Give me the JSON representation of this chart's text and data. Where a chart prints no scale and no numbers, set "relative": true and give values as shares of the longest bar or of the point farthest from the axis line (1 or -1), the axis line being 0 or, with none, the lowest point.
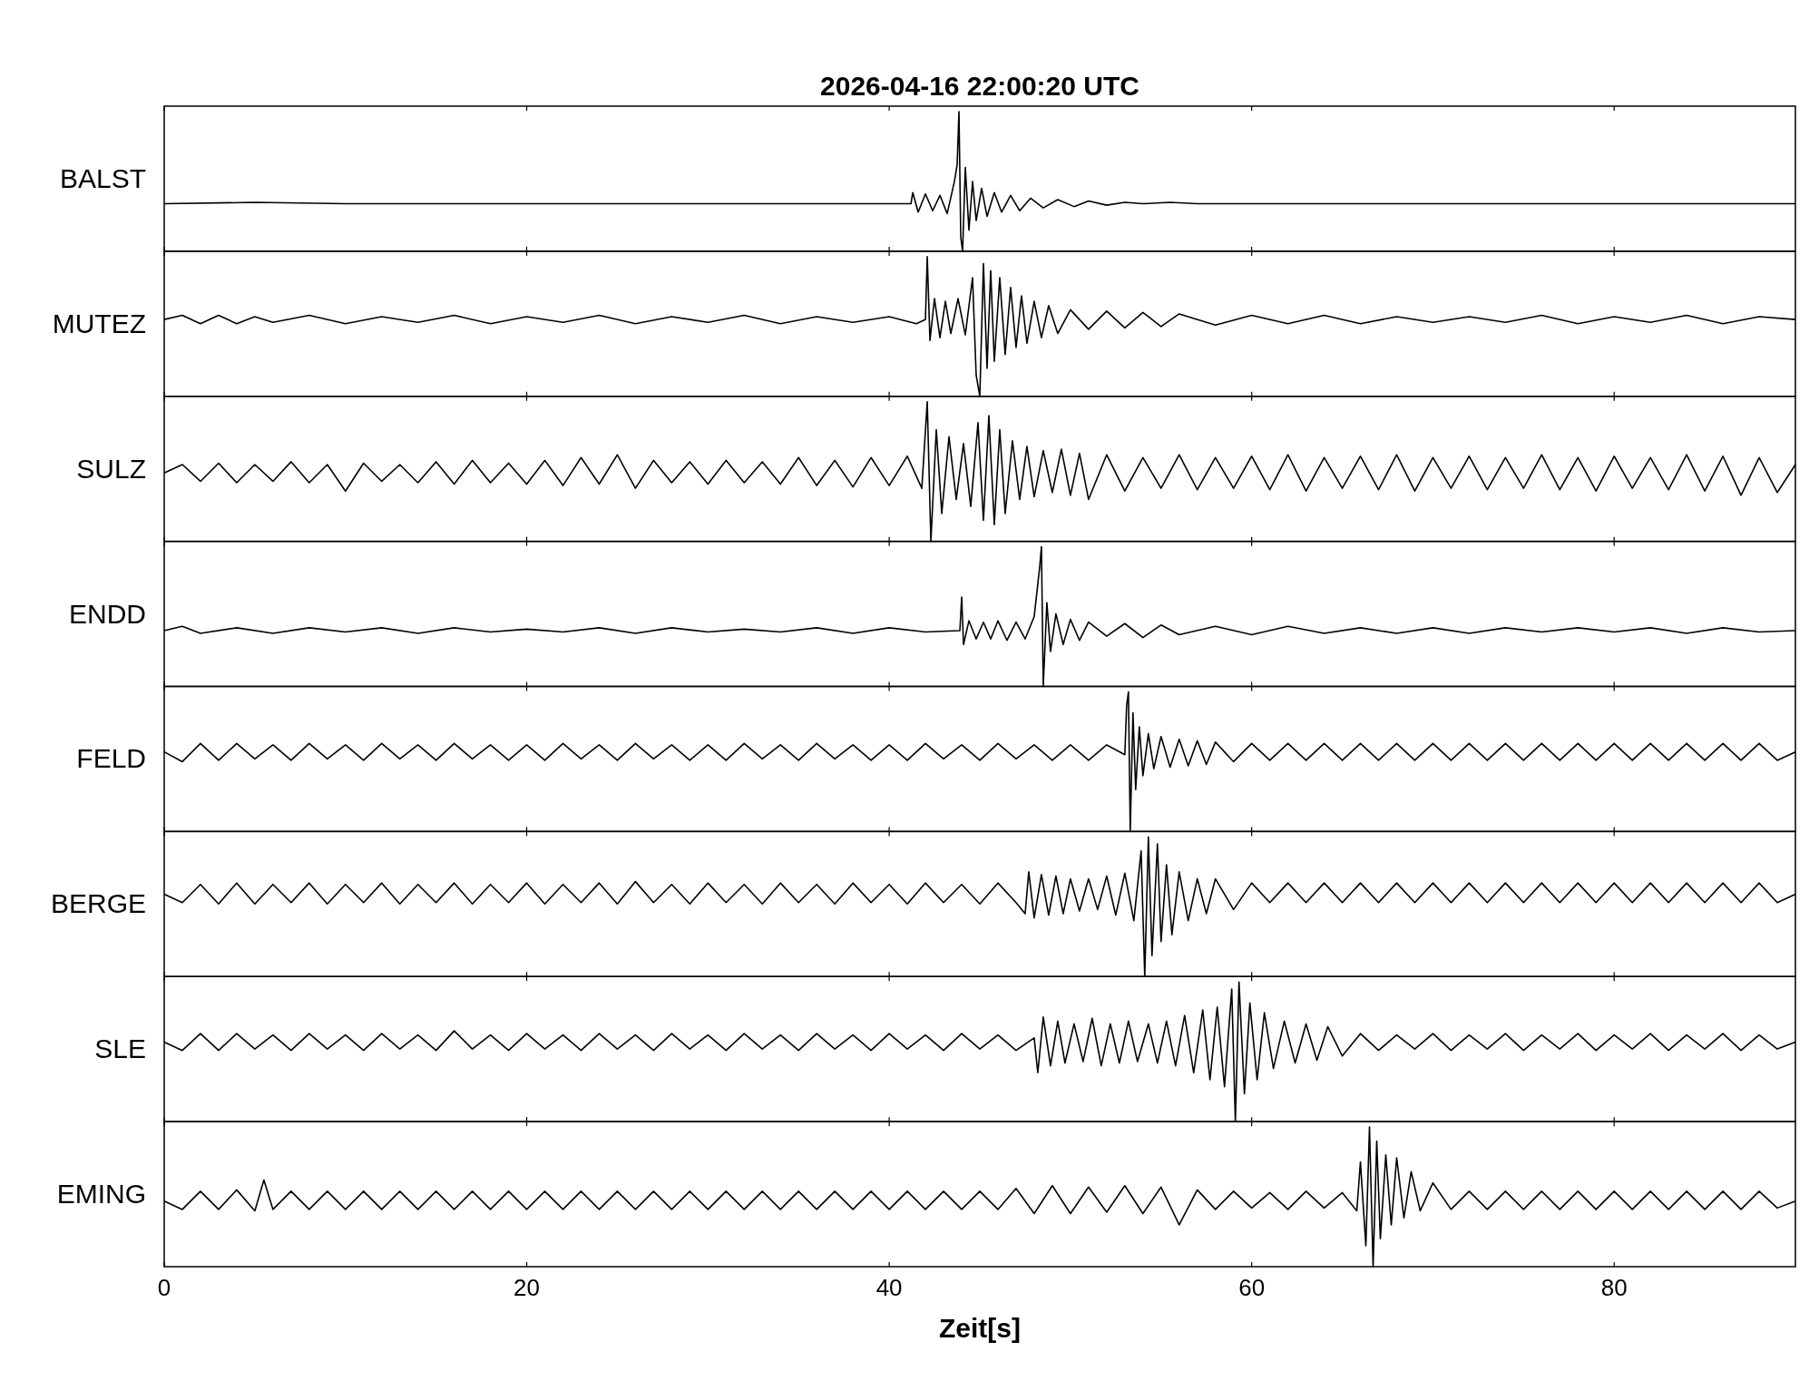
{
  "chart_data": [
    {
      "type": "line",
      "title": "2026-04-16  22:00:20 UTC",
      "ylabel": "BALST",
      "relative": true,
      "xlim": [
        0,
        90
      ],
      "xticks": [
        0,
        20,
        40,
        60,
        80
      ],
      "tick_labels": false,
      "color": "#000000",
      "x": [
        0,
        5,
        10,
        20,
        30,
        41.2,
        41.3,
        41.6,
        42,
        42.4,
        42.8,
        43.2,
        43.6,
        43.75,
        43.85,
        43.95,
        44.05,
        44.2,
        44.4,
        44.6,
        44.8,
        45.1,
        45.4,
        45.8,
        46.2,
        46.7,
        47.2,
        47.8,
        48.5,
        49.3,
        50.2,
        51,
        52,
        53,
        54,
        55.5,
        57,
        60,
        70,
        80,
        90
      ],
      "values": [
        0.34,
        0.35,
        0.34,
        0.34,
        0.34,
        0.34,
        0.42,
        0.28,
        0.41,
        0.29,
        0.4,
        0.27,
        0.5,
        0.62,
        1.0,
        0.1,
        0.0,
        0.6,
        0.15,
        0.5,
        0.22,
        0.45,
        0.25,
        0.42,
        0.28,
        0.4,
        0.29,
        0.38,
        0.31,
        0.37,
        0.32,
        0.36,
        0.33,
        0.35,
        0.34,
        0.35,
        0.34,
        0.34,
        0.34,
        0.34,
        0.34
      ]
    },
    {
      "type": "line",
      "ylabel": "MUTEZ",
      "relative": true,
      "xlim": [
        0,
        90
      ],
      "xticks": [
        0,
        20,
        40,
        60,
        80
      ],
      "tick_labels": false,
      "color": "#000000",
      "x": [
        0,
        1,
        2,
        3,
        4,
        5,
        6,
        8,
        10,
        12,
        14,
        16,
        18,
        20,
        22,
        24,
        26,
        28,
        30,
        32,
        34,
        36,
        38,
        40,
        41.5,
        42,
        42.1,
        42.25,
        42.5,
        42.8,
        43.1,
        43.4,
        43.8,
        44.2,
        44.6,
        44.8,
        45,
        45.2,
        45.4,
        45.6,
        45.8,
        46.1,
        46.4,
        46.7,
        47,
        47.3,
        47.6,
        48,
        48.4,
        48.8,
        49.3,
        50,
        51,
        52,
        53,
        54,
        55,
        56,
        58,
        60,
        62,
        64,
        66,
        68,
        70,
        72,
        74,
        76,
        78,
        80,
        82,
        84,
        86,
        88,
        90
      ],
      "values": [
        0.55,
        0.58,
        0.52,
        0.58,
        0.52,
        0.57,
        0.53,
        0.58,
        0.52,
        0.57,
        0.53,
        0.58,
        0.52,
        0.57,
        0.53,
        0.58,
        0.52,
        0.57,
        0.53,
        0.58,
        0.52,
        0.57,
        0.53,
        0.57,
        0.52,
        0.55,
        1.0,
        0.4,
        0.7,
        0.42,
        0.68,
        0.45,
        0.7,
        0.44,
        0.85,
        0.15,
        0.0,
        0.95,
        0.2,
        0.9,
        0.25,
        0.85,
        0.3,
        0.78,
        0.35,
        0.72,
        0.38,
        0.68,
        0.42,
        0.65,
        0.45,
        0.62,
        0.48,
        0.61,
        0.49,
        0.6,
        0.5,
        0.59,
        0.51,
        0.58,
        0.52,
        0.58,
        0.52,
        0.57,
        0.53,
        0.57,
        0.53,
        0.58,
        0.52,
        0.57,
        0.53,
        0.58,
        0.52,
        0.57,
        0.55
      ]
    },
    {
      "type": "line",
      "ylabel": "SULZ",
      "relative": true,
      "xlim": [
        0,
        90
      ],
      "xticks": [
        0,
        20,
        40,
        60,
        80
      ],
      "tick_labels": false,
      "color": "#000000",
      "x": [
        0,
        1,
        2,
        3,
        4,
        5,
        6,
        7,
        8,
        9,
        10,
        11,
        12,
        13,
        14,
        15,
        16,
        17,
        18,
        19,
        20,
        21,
        22,
        23,
        24,
        25,
        26,
        27,
        28,
        29,
        30,
        31,
        32,
        33,
        34,
        35,
        36,
        37,
        38,
        39,
        40,
        41,
        41.8,
        42.1,
        42.3,
        42.6,
        42.9,
        43.3,
        43.7,
        44.1,
        44.5,
        44.9,
        45.2,
        45.5,
        45.8,
        46.1,
        46.4,
        46.8,
        47.2,
        47.6,
        48,
        48.5,
        49,
        49.5,
        50,
        50.5,
        51,
        52,
        53,
        54,
        55,
        56,
        57,
        58,
        59,
        60,
        61,
        62,
        63,
        64,
        65,
        66,
        67,
        68,
        69,
        70,
        71,
        72,
        73,
        74,
        75,
        76,
        77,
        78,
        79,
        80,
        81,
        82,
        83,
        84,
        85,
        86,
        87,
        88,
        89,
        90
      ],
      "values": [
        0.49,
        0.55,
        0.43,
        0.56,
        0.42,
        0.55,
        0.43,
        0.57,
        0.42,
        0.55,
        0.36,
        0.56,
        0.43,
        0.55,
        0.42,
        0.57,
        0.41,
        0.58,
        0.42,
        0.56,
        0.41,
        0.58,
        0.4,
        0.6,
        0.41,
        0.62,
        0.38,
        0.58,
        0.42,
        0.57,
        0.41,
        0.58,
        0.42,
        0.57,
        0.41,
        0.6,
        0.4,
        0.58,
        0.39,
        0.6,
        0.4,
        0.61,
        0.38,
        1.0,
        0.0,
        0.8,
        0.2,
        0.75,
        0.3,
        0.7,
        0.25,
        0.85,
        0.15,
        0.9,
        0.12,
        0.8,
        0.2,
        0.72,
        0.3,
        0.68,
        0.32,
        0.65,
        0.35,
        0.66,
        0.33,
        0.63,
        0.3,
        0.62,
        0.36,
        0.6,
        0.38,
        0.62,
        0.37,
        0.6,
        0.38,
        0.61,
        0.37,
        0.62,
        0.36,
        0.6,
        0.38,
        0.61,
        0.37,
        0.62,
        0.36,
        0.6,
        0.38,
        0.61,
        0.37,
        0.6,
        0.38,
        0.62,
        0.37,
        0.6,
        0.36,
        0.61,
        0.38,
        0.6,
        0.37,
        0.62,
        0.36,
        0.61,
        0.33,
        0.6,
        0.35,
        0.55
      ]
    },
    {
      "type": "line",
      "ylabel": "ENDD",
      "relative": true,
      "xlim": [
        0,
        90
      ],
      "xticks": [
        0,
        20,
        40,
        60,
        80
      ],
      "tick_labels": false,
      "color": "#000000",
      "x": [
        0,
        1,
        2,
        4,
        6,
        8,
        10,
        12,
        14,
        16,
        18,
        20,
        22,
        24,
        26,
        28,
        30,
        32,
        34,
        36,
        38,
        40,
        42,
        43.9,
        44,
        44.1,
        44.4,
        44.8,
        45.2,
        45.6,
        46,
        46.5,
        47,
        47.5,
        48,
        48.3,
        48.4,
        48.5,
        48.7,
        48.9,
        49.2,
        49.6,
        50,
        50.5,
        51,
        52,
        53,
        54,
        55,
        56,
        58,
        60,
        62,
        64,
        66,
        68,
        70,
        72,
        74,
        76,
        78,
        80,
        82,
        84,
        86,
        88,
        90
      ],
      "values": [
        0.4,
        0.43,
        0.38,
        0.42,
        0.38,
        0.42,
        0.39,
        0.42,
        0.38,
        0.42,
        0.39,
        0.41,
        0.39,
        0.42,
        0.38,
        0.42,
        0.39,
        0.41,
        0.39,
        0.42,
        0.38,
        0.42,
        0.39,
        0.4,
        0.64,
        0.3,
        0.47,
        0.34,
        0.46,
        0.34,
        0.47,
        0.33,
        0.46,
        0.34,
        0.5,
        0.85,
        1.0,
        0.0,
        0.6,
        0.25,
        0.52,
        0.3,
        0.48,
        0.33,
        0.46,
        0.36,
        0.45,
        0.35,
        0.44,
        0.37,
        0.43,
        0.37,
        0.43,
        0.38,
        0.42,
        0.38,
        0.42,
        0.38,
        0.42,
        0.39,
        0.42,
        0.39,
        0.42,
        0.38,
        0.42,
        0.39,
        0.4
      ]
    },
    {
      "type": "line",
      "ylabel": "FELD",
      "relative": true,
      "xlim": [
        0,
        90
      ],
      "xticks": [
        0,
        20,
        40,
        60,
        80
      ],
      "tick_labels": false,
      "color": "#000000",
      "x": [
        0,
        1,
        2,
        3,
        4,
        5,
        6,
        7,
        8,
        9,
        10,
        11,
        12,
        13,
        14,
        15,
        16,
        17,
        18,
        19,
        20,
        21,
        22,
        23,
        24,
        25,
        26,
        27,
        28,
        29,
        30,
        31,
        32,
        33,
        34,
        35,
        36,
        37,
        38,
        39,
        40,
        41,
        42,
        43,
        44,
        45,
        46,
        47,
        48,
        49,
        50,
        51,
        52,
        53,
        53.1,
        53.2,
        53.3,
        53.45,
        53.6,
        53.8,
        54,
        54.3,
        54.6,
        55,
        55.5,
        56,
        56.5,
        57,
        57.5,
        58,
        59,
        60,
        61,
        62,
        63,
        64,
        65,
        66,
        67,
        68,
        69,
        70,
        71,
        72,
        73,
        74,
        75,
        76,
        77,
        78,
        79,
        80,
        81,
        82,
        83,
        84,
        85,
        86,
        87,
        88,
        89,
        90
      ],
      "values": [
        0.57,
        0.5,
        0.63,
        0.51,
        0.63,
        0.52,
        0.62,
        0.51,
        0.63,
        0.52,
        0.62,
        0.51,
        0.63,
        0.52,
        0.62,
        0.51,
        0.63,
        0.52,
        0.62,
        0.51,
        0.62,
        0.51,
        0.63,
        0.52,
        0.62,
        0.51,
        0.63,
        0.52,
        0.62,
        0.51,
        0.62,
        0.51,
        0.63,
        0.52,
        0.62,
        0.51,
        0.63,
        0.52,
        0.62,
        0.51,
        0.62,
        0.51,
        0.63,
        0.52,
        0.62,
        0.51,
        0.63,
        0.52,
        0.62,
        0.51,
        0.62,
        0.51,
        0.62,
        0.55,
        0.9,
        1.0,
        0.0,
        0.85,
        0.3,
        0.75,
        0.4,
        0.7,
        0.45,
        0.68,
        0.46,
        0.66,
        0.47,
        0.65,
        0.48,
        0.64,
        0.5,
        0.63,
        0.51,
        0.63,
        0.51,
        0.63,
        0.51,
        0.63,
        0.51,
        0.63,
        0.51,
        0.63,
        0.51,
        0.63,
        0.51,
        0.63,
        0.51,
        0.63,
        0.51,
        0.63,
        0.51,
        0.63,
        0.51,
        0.63,
        0.51,
        0.63,
        0.51,
        0.63,
        0.51,
        0.63,
        0.51,
        0.57
      ]
    },
    {
      "type": "line",
      "ylabel": "BERGE",
      "relative": true,
      "xlim": [
        0,
        90
      ],
      "xticks": [
        0,
        20,
        40,
        60,
        80
      ],
      "tick_labels": false,
      "color": "#000000",
      "x": [
        0,
        1,
        2,
        3,
        4,
        5,
        6,
        7,
        8,
        9,
        10,
        11,
        12,
        13,
        14,
        15,
        16,
        17,
        18,
        19,
        20,
        21,
        22,
        23,
        24,
        25,
        26,
        27,
        28,
        29,
        30,
        31,
        32,
        33,
        34,
        35,
        36,
        37,
        38,
        39,
        40,
        41,
        42,
        43,
        44,
        45,
        46,
        47,
        47.5,
        47.7,
        48,
        48.4,
        48.8,
        49.2,
        49.6,
        50,
        50.5,
        51,
        51.5,
        52,
        52.5,
        53,
        53.5,
        53.9,
        54.1,
        54.3,
        54.5,
        54.8,
        55,
        55.3,
        55.6,
        56,
        56.5,
        57,
        57.5,
        58,
        59,
        60,
        61,
        62,
        63,
        64,
        65,
        66,
        67,
        68,
        69,
        70,
        71,
        72,
        73,
        74,
        75,
        76,
        77,
        78,
        79,
        80,
        81,
        82,
        83,
        84,
        85,
        86,
        87,
        88,
        89,
        90
      ],
      "values": [
        0.59,
        0.53,
        0.66,
        0.52,
        0.67,
        0.52,
        0.66,
        0.53,
        0.67,
        0.52,
        0.66,
        0.53,
        0.67,
        0.52,
        0.66,
        0.53,
        0.67,
        0.52,
        0.66,
        0.53,
        0.67,
        0.52,
        0.66,
        0.53,
        0.67,
        0.52,
        0.68,
        0.53,
        0.66,
        0.52,
        0.67,
        0.53,
        0.66,
        0.52,
        0.67,
        0.53,
        0.66,
        0.52,
        0.67,
        0.53,
        0.66,
        0.52,
        0.67,
        0.53,
        0.66,
        0.52,
        0.67,
        0.53,
        0.45,
        0.75,
        0.42,
        0.73,
        0.44,
        0.72,
        0.45,
        0.7,
        0.47,
        0.7,
        0.48,
        0.72,
        0.44,
        0.74,
        0.4,
        0.9,
        0.0,
        1.0,
        0.15,
        0.95,
        0.25,
        0.8,
        0.3,
        0.75,
        0.4,
        0.7,
        0.45,
        0.7,
        0.48,
        0.67,
        0.53,
        0.67,
        0.53,
        0.67,
        0.53,
        0.67,
        0.53,
        0.67,
        0.53,
        0.67,
        0.53,
        0.67,
        0.53,
        0.67,
        0.53,
        0.67,
        0.53,
        0.67,
        0.53,
        0.67,
        0.53,
        0.67,
        0.53,
        0.67,
        0.53,
        0.67,
        0.53,
        0.67,
        0.53,
        0.59
      ]
    },
    {
      "type": "line",
      "ylabel": "SLE",
      "relative": true,
      "xlim": [
        0,
        90
      ],
      "xticks": [
        0,
        20,
        40,
        60,
        80
      ],
      "tick_labels": false,
      "color": "#000000",
      "x": [
        0,
        1,
        2,
        3,
        4,
        5,
        6,
        7,
        8,
        9,
        10,
        11,
        12,
        13,
        14,
        15,
        16,
        17,
        18,
        19,
        20,
        21,
        22,
        23,
        24,
        25,
        26,
        27,
        28,
        29,
        30,
        31,
        32,
        33,
        34,
        35,
        36,
        37,
        38,
        39,
        40,
        41,
        42,
        43,
        44,
        45,
        46,
        47,
        48,
        48.2,
        48.5,
        48.9,
        49.3,
        49.7,
        50.2,
        50.7,
        51.2,
        51.7,
        52.2,
        52.7,
        53.2,
        53.7,
        54.3,
        54.8,
        55.3,
        55.8,
        56.3,
        56.8,
        57.3,
        57.7,
        58.1,
        58.5,
        58.9,
        59.1,
        59.3,
        59.6,
        59.9,
        60.3,
        60.7,
        61.2,
        61.8,
        62.4,
        63,
        63.6,
        64.2,
        65,
        66,
        67,
        68,
        69,
        70,
        71,
        72,
        73,
        74,
        75,
        76,
        77,
        78,
        79,
        80,
        81,
        82,
        83,
        84,
        85,
        86,
        87,
        88,
        89,
        90
      ],
      "values": [
        0.57,
        0.51,
        0.63,
        0.51,
        0.63,
        0.52,
        0.62,
        0.51,
        0.63,
        0.52,
        0.62,
        0.51,
        0.63,
        0.52,
        0.62,
        0.51,
        0.65,
        0.52,
        0.62,
        0.51,
        0.63,
        0.52,
        0.62,
        0.51,
        0.63,
        0.52,
        0.62,
        0.51,
        0.63,
        0.52,
        0.62,
        0.51,
        0.63,
        0.52,
        0.62,
        0.51,
        0.63,
        0.52,
        0.62,
        0.51,
        0.63,
        0.52,
        0.62,
        0.51,
        0.63,
        0.52,
        0.62,
        0.51,
        0.6,
        0.35,
        0.75,
        0.4,
        0.72,
        0.42,
        0.7,
        0.43,
        0.74,
        0.4,
        0.7,
        0.42,
        0.72,
        0.43,
        0.7,
        0.42,
        0.72,
        0.4,
        0.76,
        0.35,
        0.8,
        0.3,
        0.82,
        0.25,
        0.95,
        0.0,
        1.0,
        0.2,
        0.85,
        0.3,
        0.78,
        0.38,
        0.72,
        0.42,
        0.7,
        0.44,
        0.68,
        0.47,
        0.63,
        0.51,
        0.62,
        0.52,
        0.63,
        0.51,
        0.62,
        0.52,
        0.63,
        0.51,
        0.62,
        0.52,
        0.63,
        0.51,
        0.62,
        0.52,
        0.63,
        0.51,
        0.62,
        0.52,
        0.63,
        0.51,
        0.62,
        0.52,
        0.57
      ]
    },
    {
      "type": "line",
      "ylabel": "EMING",
      "xlabel": "Zeit[s]",
      "relative": true,
      "xlim": [
        0,
        90
      ],
      "xticks": [
        0,
        20,
        40,
        60,
        80
      ],
      "tick_labels": "x",
      "color": "#000000",
      "x": [
        0,
        1,
        2,
        3,
        4,
        5,
        5.5,
        6,
        7,
        8,
        9,
        10,
        11,
        12,
        13,
        14,
        15,
        16,
        17,
        18,
        19,
        20,
        21,
        22,
        23,
        24,
        25,
        26,
        27,
        28,
        29,
        30,
        31,
        32,
        33,
        34,
        35,
        36,
        37,
        38,
        39,
        40,
        41,
        42,
        43,
        44,
        45,
        46,
        47,
        48,
        49,
        50,
        51,
        52,
        53,
        54,
        55,
        56,
        57,
        58,
        59,
        60,
        61,
        62,
        63,
        64,
        65,
        65.8,
        66,
        66.3,
        66.5,
        66.7,
        66.9,
        67.1,
        67.4,
        67.7,
        68,
        68.4,
        68.8,
        69.3,
        70,
        71,
        72,
        73,
        74,
        75,
        76,
        77,
        78,
        79,
        80,
        81,
        82,
        83,
        84,
        85,
        86,
        87,
        88,
        89,
        90
      ],
      "values": [
        0.47,
        0.41,
        0.54,
        0.41,
        0.55,
        0.4,
        0.62,
        0.41,
        0.54,
        0.41,
        0.54,
        0.41,
        0.54,
        0.41,
        0.54,
        0.41,
        0.54,
        0.41,
        0.54,
        0.41,
        0.54,
        0.41,
        0.54,
        0.41,
        0.54,
        0.41,
        0.54,
        0.41,
        0.54,
        0.41,
        0.54,
        0.41,
        0.54,
        0.41,
        0.54,
        0.41,
        0.54,
        0.41,
        0.54,
        0.41,
        0.54,
        0.41,
        0.54,
        0.41,
        0.54,
        0.41,
        0.54,
        0.41,
        0.56,
        0.38,
        0.58,
        0.38,
        0.57,
        0.39,
        0.58,
        0.38,
        0.57,
        0.3,
        0.55,
        0.41,
        0.54,
        0.42,
        0.53,
        0.41,
        0.54,
        0.42,
        0.53,
        0.4,
        0.75,
        0.15,
        1.0,
        0.0,
        0.9,
        0.2,
        0.8,
        0.3,
        0.78,
        0.35,
        0.68,
        0.4,
        0.6,
        0.41,
        0.54,
        0.41,
        0.54,
        0.41,
        0.54,
        0.41,
        0.54,
        0.41,
        0.54,
        0.41,
        0.54,
        0.41,
        0.54,
        0.41,
        0.54,
        0.41,
        0.54,
        0.42,
        0.47
      ]
    }
  ]
}
